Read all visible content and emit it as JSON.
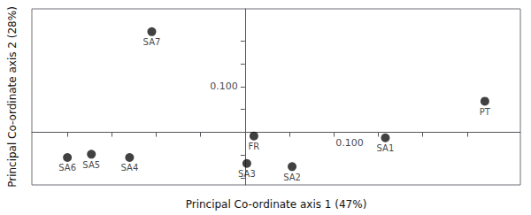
{
  "chart_data": {
    "type": "scatter",
    "labels": [
      "SA7",
      "SA6",
      "SA5",
      "SA4",
      "SA3",
      "SA2",
      "FR",
      "SA1",
      "PT"
    ],
    "x": [
      -0.105,
      -0.2,
      -0.173,
      -0.13,
      0.002,
      0.053,
      0.01,
      0.158,
      0.27
    ],
    "values": [
      0.22,
      -0.055,
      -0.048,
      -0.055,
      -0.068,
      -0.075,
      -0.008,
      -0.012,
      0.068
    ],
    "color": "#111111",
    "xlabel": "Principal Co-ordinate axis 1 (47%)",
    "ylabel": "Principal Co-ordinate axis 2 (28%)",
    "xlim": [
      -0.24,
      0.31
    ],
    "ylim": [
      -0.115,
      0.27
    ],
    "xticks": [
      -0.2,
      -0.15,
      -0.1,
      -0.05,
      0.05,
      0.1,
      0.15,
      0.2,
      0.25
    ],
    "yticks": [
      0.2,
      0.15,
      0.1,
      0.05,
      -0.05,
      -0.1
    ],
    "tick_labels": false,
    "grid": false,
    "annotations": [
      {
        "text": "0.100",
        "axis": "y",
        "value": 0.1
      },
      {
        "text": "0.100",
        "axis": "x",
        "value": 0.1
      }
    ]
  }
}
